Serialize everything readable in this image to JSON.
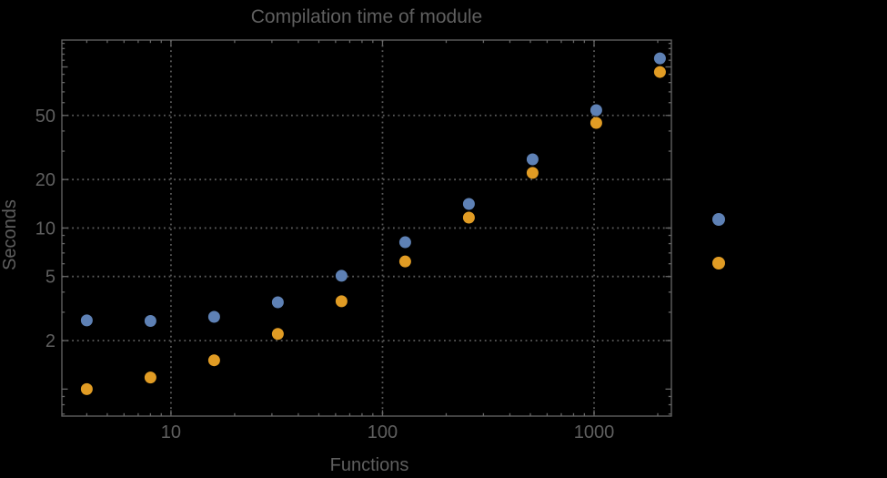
{
  "colors": {
    "background": "#000000",
    "frame": "#666666",
    "grid": "#5a5a5a",
    "text": "#5f5f5f",
    "series_blue": "#5E81B5",
    "series_orange": "#E19C24"
  },
  "chart_data": {
    "type": "scatter",
    "title": "Compilation time of module",
    "xlabel": "Functions",
    "ylabel": "Seconds",
    "x_scale": "log",
    "y_scale": "log",
    "xlim": [
      3.05,
      2320
    ],
    "ylim": [
      0.68,
      146.8
    ],
    "grid": "dotted at labeled ticks",
    "x": [
      4,
      8,
      16,
      32,
      64,
      128,
      256,
      512,
      1024,
      2048
    ],
    "series": [
      {
        "name": "series-1-blue",
        "color": "#5E81B5",
        "values": [
          2.67,
          2.65,
          2.81,
          3.46,
          5.05,
          8.16,
          14.1,
          26.7,
          53.9,
          113
        ]
      },
      {
        "name": "series-2-orange",
        "color": "#E19C24",
        "values": [
          1.0,
          1.18,
          1.51,
          2.2,
          3.51,
          6.2,
          11.6,
          22.0,
          44.9,
          93.0
        ]
      }
    ],
    "x_ticks": [
      {
        "value": 10,
        "label": "10"
      },
      {
        "value": 100,
        "label": "100"
      },
      {
        "value": 1000,
        "label": "1000"
      }
    ],
    "y_ticks": [
      {
        "value": 2,
        "label": "2"
      },
      {
        "value": 5,
        "label": "5"
      },
      {
        "value": 10,
        "label": "10"
      },
      {
        "value": 20,
        "label": "20"
      },
      {
        "value": 50,
        "label": "50"
      }
    ],
    "legend": {
      "position": "right-outside",
      "labels_visible": false,
      "marker_colors": [
        "#5E81B5",
        "#E19C24"
      ]
    }
  }
}
